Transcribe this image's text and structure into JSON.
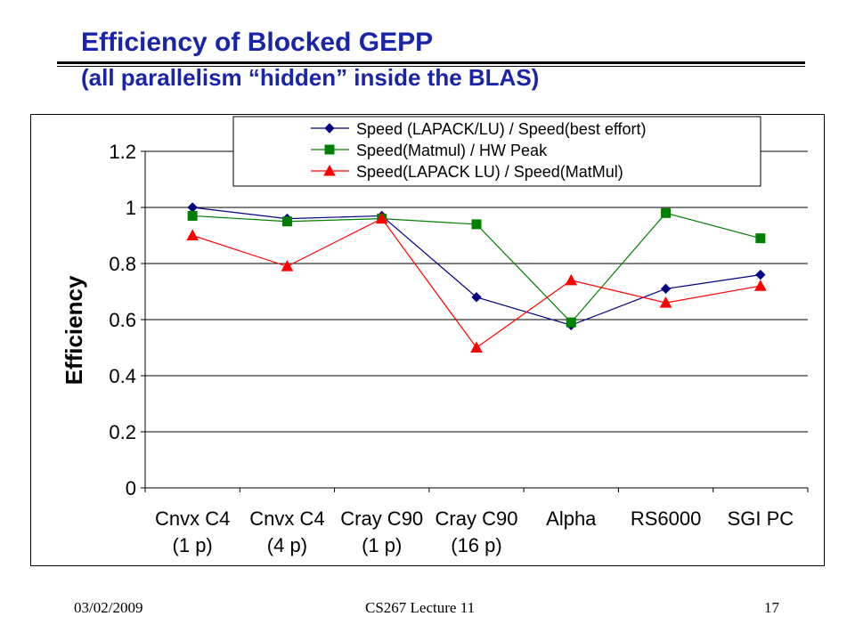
{
  "slide": {
    "title": "Efficiency of Blocked GEPP",
    "subtitle": "(all parallelism “hidden” inside the BLAS)",
    "footer_date": "03/02/2009",
    "footer_course": "CS267 Lecture 11",
    "footer_page": "17",
    "title_color": "#1a24a8"
  },
  "chart_data": {
    "type": "line",
    "title": "",
    "xlabel": "",
    "ylabel": "Efficiency",
    "ylim": [
      0,
      1.2
    ],
    "yticks": [
      "0",
      "0.2",
      "0.4",
      "0.6",
      "0.8",
      "1",
      "1.2"
    ],
    "grid": true,
    "legend_position": "top-center",
    "categories": [
      [
        "Cnvx C4",
        "(1 p)"
      ],
      [
        "Cnvx C4",
        "(4 p)"
      ],
      [
        "Cray C90",
        "(1 p)"
      ],
      [
        "Cray C90",
        "(16 p)"
      ],
      [
        "Alpha",
        ""
      ],
      [
        "RS6000",
        ""
      ],
      [
        "SGI PC",
        ""
      ]
    ],
    "series": [
      {
        "name": "Speed (LAPACK/LU) / Speed(best effort)",
        "color": "#000080",
        "marker": "diamond",
        "values": [
          1.0,
          0.96,
          0.97,
          0.68,
          0.58,
          0.71,
          0.76
        ]
      },
      {
        "name": "Speed(Matmul) / HW Peak",
        "color": "#008000",
        "marker": "square",
        "values": [
          0.97,
          0.95,
          0.96,
          0.94,
          0.59,
          0.98,
          0.89
        ]
      },
      {
        "name": "Speed(LAPACK LU) / Speed(MatMul)",
        "color": "#ff0000",
        "marker": "triangle",
        "values": [
          0.9,
          0.79,
          0.96,
          0.5,
          0.74,
          0.66,
          0.72
        ]
      }
    ]
  }
}
